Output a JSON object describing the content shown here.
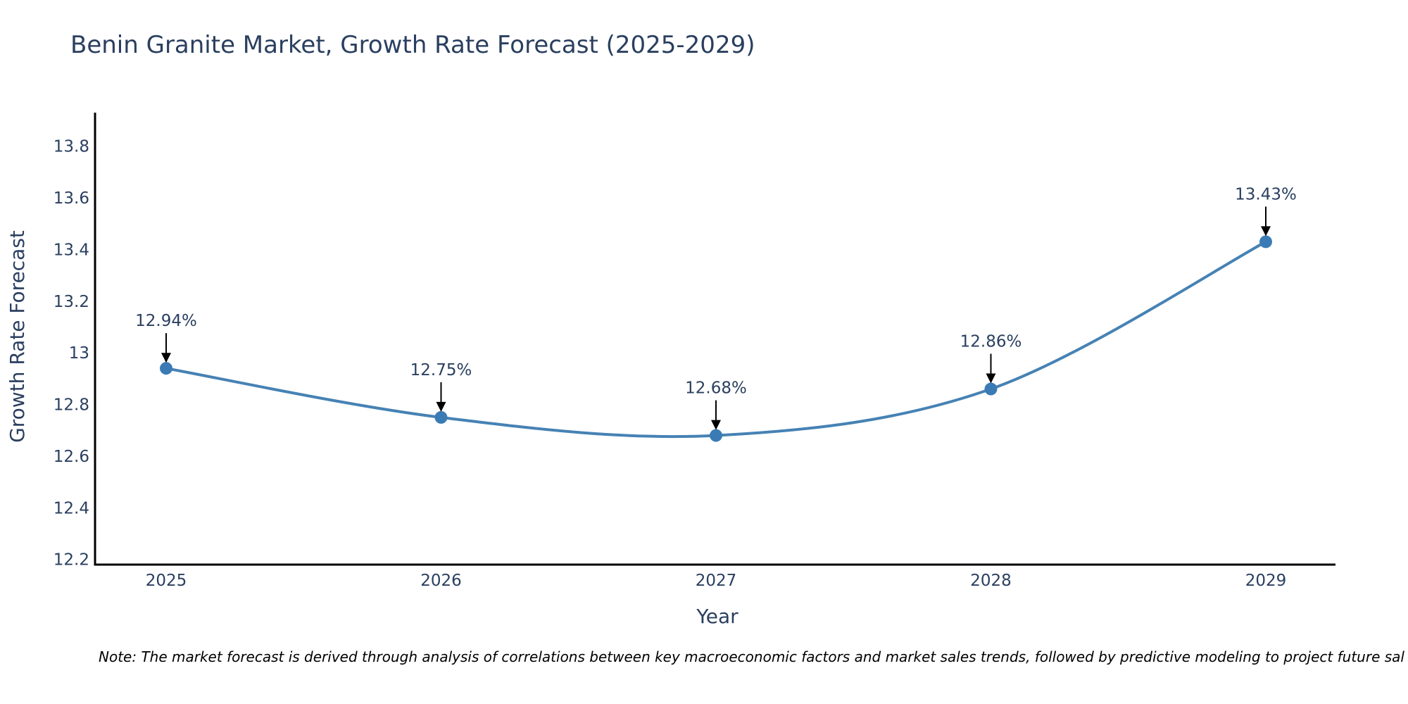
{
  "title": "Benin Granite Market, Growth Rate Forecast (2025-2029)",
  "note": "Note: The market forecast is derived through analysis of correlations between key macroeconomic factors and market sales trends, followed by predictive modeling to project future sal",
  "colors": {
    "line": "#4682b4",
    "marker": "#3b7bb5",
    "text": "#2a3f5f",
    "axis": "#000000",
    "arrow": "#000000"
  },
  "chart_data": {
    "type": "line",
    "title": "Benin Granite Market, Growth Rate Forecast (2025-2029)",
    "xlabel": "Year",
    "ylabel": "Growth Rate Forecast",
    "x": [
      "2025",
      "2026",
      "2027",
      "2028",
      "2029"
    ],
    "values": [
      12.94,
      12.75,
      12.68,
      12.86,
      13.43
    ],
    "data_labels": [
      "12.94%",
      "12.75%",
      "12.68%",
      "12.86%",
      "13.43%"
    ],
    "y_ticks": [
      12.2,
      12.4,
      12.6,
      12.8,
      13,
      13.2,
      13.4,
      13.6,
      13.8
    ],
    "y_tick_labels": [
      "12.2",
      "12.4",
      "12.6",
      "12.8",
      "13",
      "13.2",
      "13.4",
      "13.6",
      "13.8"
    ],
    "ylim": [
      12.18,
      13.93
    ],
    "grid": false,
    "line_shape": "spline"
  }
}
